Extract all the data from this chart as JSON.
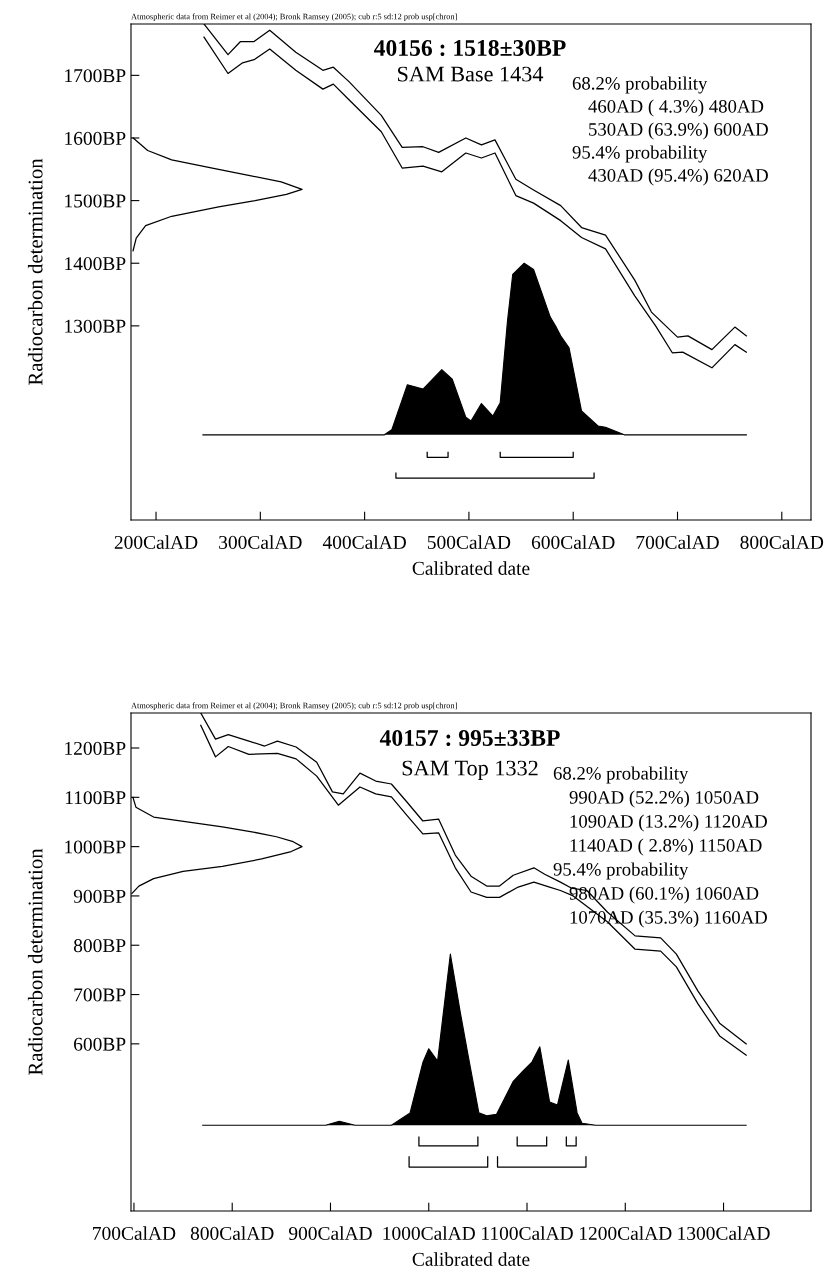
{
  "chart_data": [
    {
      "type": "line",
      "title": "40156 : 1518±30BP",
      "subtitle": "SAM Base 1434",
      "xlabel": "Calibrated date",
      "ylabel": "Radiocarbon determination",
      "annotations": [
        "Atmospheric data from Reimer et al (2004); Bronk Ramsey (2005); cub r:5 sd:12 prob usp[chron]",
        "68.2% probability",
        "460AD ( 4.3%) 480AD",
        "530AD (63.9%) 600AD",
        "95.4% probability",
        "430AD (95.4%) 620AD"
      ],
      "xlim": [
        176,
        828
      ],
      "ylim": [
        990,
        1782
      ],
      "xticks": [
        {
          "value": 200,
          "label": "200CalAD"
        },
        {
          "value": 300,
          "label": "300CalAD"
        },
        {
          "value": 400,
          "label": "400CalAD"
        },
        {
          "value": 500,
          "label": "500CalAD"
        },
        {
          "value": 600,
          "label": "600CalAD"
        },
        {
          "value": 700,
          "label": "700CalAD"
        },
        {
          "value": 800,
          "label": "800CalAD"
        }
      ],
      "yticks": [
        {
          "value": 1300,
          "label": "1300BP"
        },
        {
          "value": 1400,
          "label": "1400BP"
        },
        {
          "value": 1500,
          "label": "1500BP"
        },
        {
          "value": 1600,
          "label": "1600BP"
        },
        {
          "value": 1700,
          "label": "1700BP"
        }
      ],
      "grid": false,
      "legend": false,
      "series": [
        {
          "color": "#000000",
          "x": [
            246,
            269,
            281,
            294,
            309,
            334,
            360,
            370,
            385,
            416,
            436,
            456,
            471,
            497,
            512,
            525,
            545,
            562,
            588,
            608,
            631,
            659,
            675,
            700,
            710,
            733,
            755,
            766
          ],
          "values": [
            1782,
            1733,
            1754,
            1754,
            1772,
            1737,
            1708,
            1713,
            1690,
            1636,
            1585,
            1586,
            1577,
            1600,
            1589,
            1597,
            1534,
            1517,
            1492,
            1457,
            1445,
            1373,
            1322,
            1282,
            1284,
            1262,
            1298,
            1284
          ]
        },
        {
          "color": "#000000",
          "x": [
            246,
            269,
            283,
            294,
            309,
            334,
            360,
            370,
            385,
            416,
            436,
            456,
            474,
            497,
            512,
            525,
            545,
            562,
            588,
            608,
            631,
            659,
            679,
            695,
            705,
            733,
            755,
            766
          ],
          "values": [
            1761,
            1703,
            1720,
            1725,
            1742,
            1708,
            1678,
            1686,
            1661,
            1610,
            1552,
            1555,
            1546,
            1576,
            1568,
            1576,
            1508,
            1496,
            1468,
            1441,
            1423,
            1348,
            1300,
            1257,
            1258,
            1233,
            1270,
            1258
          ]
        },
        {
          "color": "#000000",
          "x": [
            178,
            181,
            190,
            215,
            260,
            295,
            325,
            340,
            320,
            290,
            254,
            215,
            192,
            178
          ],
          "values": [
            1420,
            1440,
            1460,
            1475,
            1490,
            1500,
            1510,
            1518,
            1530,
            1540,
            1552,
            1565,
            1580,
            1600
          ]
        },
        {
          "type": "area",
          "color": "#000000",
          "x": [
            245,
            419,
            426,
            441,
            456,
            474,
            484,
            497,
            502,
            512,
            523,
            530,
            537,
            542,
            553,
            562,
            578,
            583,
            588,
            596,
            608,
            624,
            631,
            649,
            766
          ],
          "values": [
            1126,
            1126,
            1134,
            1206,
            1199,
            1230,
            1215,
            1154,
            1148,
            1176,
            1156,
            1177,
            1308,
            1382,
            1400,
            1390,
            1314,
            1300,
            1284,
            1265,
            1164,
            1140,
            1138,
            1126,
            1126
          ]
        },
        {
          "color": "#000000",
          "x": [
            460,
            460,
            480,
            480,
            null,
            530,
            530,
            600,
            600,
            null,
            430,
            430,
            620,
            620
          ],
          "values": [
            1098,
            1090,
            1090,
            1098,
            null,
            1098,
            1090,
            1090,
            1098,
            null,
            1065,
            1057,
            1057,
            1065
          ]
        }
      ]
    },
    {
      "type": "line",
      "title": "40157 : 995±33BP",
      "subtitle": "SAM Top 1332",
      "xlabel": "Calibrated date",
      "ylabel": "Radiocarbon determination",
      "annotations": [
        "Atmospheric data from Reimer et al (2004); Bronk Ramsey (2005); cub r:5 sd:12 prob usp[chron]",
        "68.2% probability",
        "990AD (52.2%) 1050AD",
        "1090AD (13.2%) 1120AD",
        "1140AD ( 2.8%) 1150AD",
        "95.4% probability",
        "980AD (60.1%) 1060AD",
        "1070AD (35.3%) 1160AD"
      ],
      "xlim": [
        697,
        1389
      ],
      "ylim": [
        261,
        1271
      ],
      "xticks": [
        {
          "value": 700,
          "label": "700CalAD"
        },
        {
          "value": 800,
          "label": "800CalAD"
        },
        {
          "value": 900,
          "label": "900CalAD"
        },
        {
          "value": 1000,
          "label": "1000CalAD"
        },
        {
          "value": 1100,
          "label": "1100CalAD"
        },
        {
          "value": 1200,
          "label": "1200CalAD"
        },
        {
          "value": 1300,
          "label": "1300CalAD"
        }
      ],
      "yticks": [
        {
          "value": 600,
          "label": "600BP"
        },
        {
          "value": 700,
          "label": "700BP"
        },
        {
          "value": 800,
          "label": "800BP"
        },
        {
          "value": 900,
          "label": "900BP"
        },
        {
          "value": 1000,
          "label": "1000BP"
        },
        {
          "value": 1100,
          "label": "1100BP"
        },
        {
          "value": 1200,
          "label": "1200BP"
        }
      ],
      "grid": false,
      "legend": false,
      "series": [
        {
          "color": "#000000",
          "x": [
            768,
            783,
            796,
            817,
            833,
            846,
            865,
            886,
            902,
            913,
            930,
            946,
            962,
            978,
            994,
            1010,
            1027,
            1043,
            1059,
            1072,
            1086,
            1107,
            1118,
            1134,
            1145,
            1161,
            1182,
            1210,
            1236,
            1252,
            1274,
            1296,
            1323
          ],
          "values": [
            1271,
            1218,
            1227,
            1214,
            1204,
            1214,
            1202,
            1171,
            1111,
            1107,
            1149,
            1133,
            1127,
            1090,
            1052,
            1056,
            983,
            940,
            920,
            920,
            942,
            957,
            944,
            928,
            916,
            911,
            867,
            819,
            815,
            782,
            707,
            642,
            600
          ]
        },
        {
          "color": "#000000",
          "x": [
            768,
            783,
            796,
            817,
            846,
            865,
            886,
            908,
            930,
            946,
            962,
            978,
            994,
            1010,
            1027,
            1043,
            1059,
            1072,
            1091,
            1107,
            1123,
            1134,
            1147,
            1182,
            1210,
            1236,
            1252,
            1274,
            1296,
            1323
          ],
          "values": [
            1246,
            1182,
            1203,
            1187,
            1189,
            1178,
            1143,
            1084,
            1121,
            1107,
            1101,
            1063,
            1026,
            1028,
            957,
            908,
            897,
            897,
            918,
            928,
            918,
            911,
            900,
            847,
            792,
            788,
            756,
            681,
            616,
            577
          ]
        },
        {
          "color": "#000000",
          "x": [
            699,
            702,
            720,
            790,
            820,
            845,
            862,
            871,
            860,
            830,
            790,
            750,
            720,
            705,
            698
          ],
          "values": [
            1100,
            1080,
            1060,
            1040,
            1030,
            1020,
            1010,
            1000,
            990,
            975,
            960,
            950,
            935,
            920,
            905
          ]
        },
        {
          "type": "area",
          "color": "#000000",
          "x": [
            770,
            895,
            909,
            925,
            962,
            981,
            994,
            1000,
            1009,
            1022,
            1032,
            1040,
            1051,
            1059,
            1069,
            1086,
            1097,
            1105,
            1113,
            1123,
            1131,
            1142,
            1151,
            1156,
            1170,
            1323
          ],
          "values": [
            435,
            435,
            443,
            435,
            435,
            460,
            562,
            590,
            565,
            782,
            665,
            577,
            460,
            454,
            457,
            524,
            547,
            563,
            594,
            482,
            476,
            567,
            460,
            439,
            435,
            435
          ]
        },
        {
          "color": "#000000",
          "x": [
            990,
            990,
            1050,
            1050,
            null,
            1090,
            1090,
            1120,
            1120,
            null,
            1140,
            1140,
            1150,
            1150,
            null,
            980,
            980,
            1060,
            1060,
            null,
            1070,
            1070,
            1160,
            1160
          ],
          "values": [
            411,
            393,
            393,
            411,
            null,
            411,
            393,
            393,
            411,
            null,
            411,
            393,
            393,
            411,
            null,
            371,
            350,
            350,
            371,
            null,
            371,
            350,
            350,
            371
          ]
        }
      ]
    }
  ]
}
